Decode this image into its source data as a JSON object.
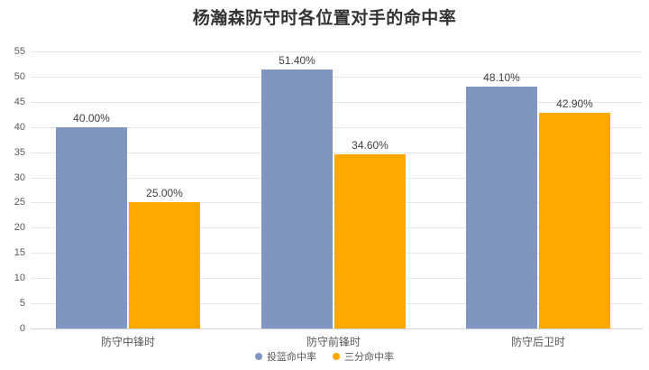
{
  "title": "杨瀚森防守时各位置对手的命中率",
  "colors": {
    "series_fg": "#7E96C0",
    "series_3pt": "#FFA800",
    "grid": "#E6E6E6",
    "baseline": "#D4D4D4",
    "title_text": "#333333",
    "value_label_text": "#404040",
    "axis_text": "#595959"
  },
  "chart_data": {
    "type": "bar",
    "title": "杨瀚森防守时各位置对手的命中率",
    "categories": [
      "防守中锋时",
      "防守前锋时",
      "防守后卫时"
    ],
    "series": [
      {
        "name": "投篮命中率",
        "color": "#7E96C0",
        "values": [
          40.0,
          51.4,
          48.1
        ],
        "labels": [
          "40.00%",
          "51.40%",
          "48.10%"
        ]
      },
      {
        "name": "三分命中率",
        "color": "#FFA800",
        "values": [
          25.0,
          34.6,
          42.9
        ],
        "labels": [
          "25.00%",
          "34.60%",
          "42.90%"
        ]
      }
    ],
    "xlabel": "",
    "ylabel": "",
    "ylim": [
      0,
      55
    ],
    "y_ticks": [
      0,
      5,
      10,
      15,
      20,
      25,
      30,
      35,
      40,
      45,
      50,
      55
    ],
    "grid": "horizontal",
    "legend_position": "bottom-center"
  }
}
